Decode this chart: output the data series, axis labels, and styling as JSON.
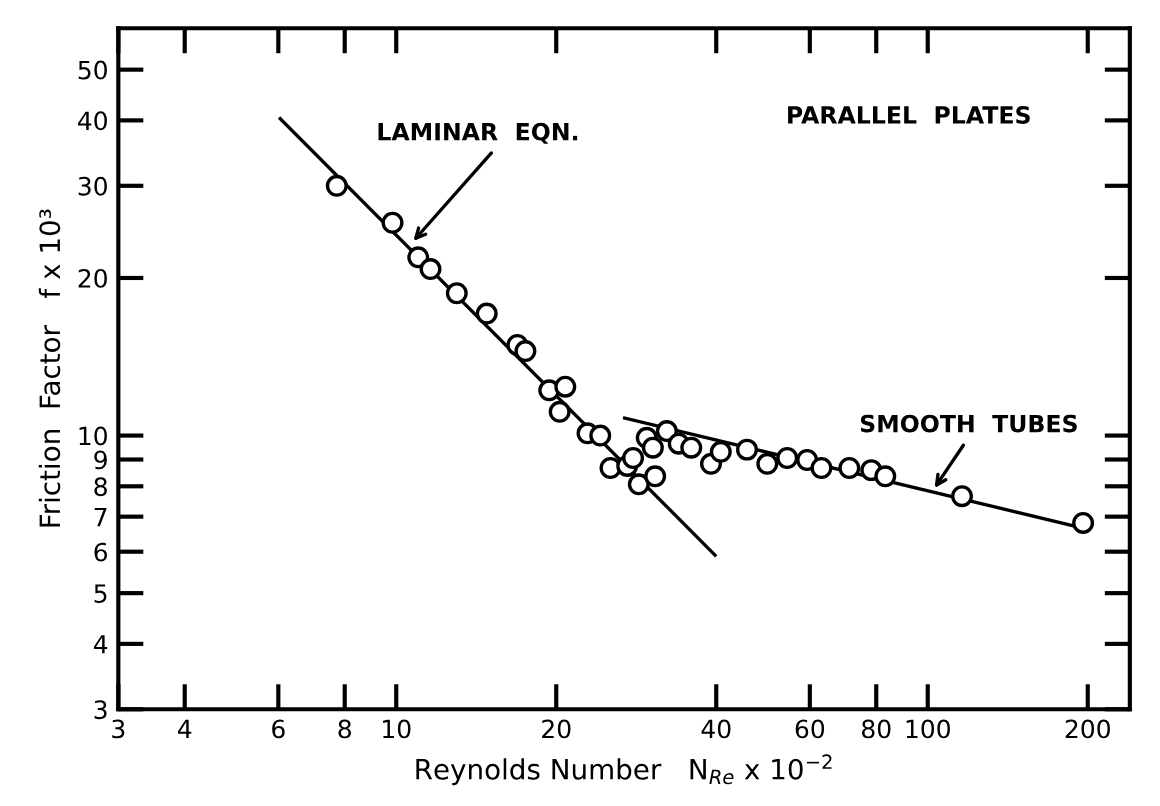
{
  "chart_data": {
    "type": "scatter",
    "xlabel": "Reynolds Number   N$_{Re}$ x 10$^{−2}$",
    "ylabel": "Friction  Factor   f x 10³",
    "log": "xy",
    "xlim": [
      3,
      240
    ],
    "ylim": [
      3,
      60
    ],
    "xticks": [
      3,
      4,
      6,
      8,
      10,
      20,
      40,
      60,
      80,
      100,
      200
    ],
    "yticks": [
      3,
      4,
      5,
      6,
      7,
      8,
      9,
      10,
      20,
      30,
      40,
      50
    ],
    "grid": false,
    "series": [
      {
        "marker": "circle",
        "color": "#000000",
        "x": [
          7.73,
          9.84,
          11.0,
          11.6,
          13.0,
          14.8,
          16.9,
          17.5,
          19.4,
          20.8,
          20.3,
          22.9,
          24.2,
          25.3,
          27.2,
          28.6,
          30.7,
          29.6,
          30.4,
          27.9,
          32.3,
          34.0,
          35.9,
          39.1,
          40.8,
          45.7,
          49.9,
          54.4,
          59.3,
          63.1,
          71.2,
          78.3,
          83.2,
          116,
          196
        ],
        "values": [
          30.0,
          25.5,
          21.9,
          20.8,
          18.7,
          17.1,
          14.9,
          14.5,
          12.2,
          12.4,
          11.1,
          10.1,
          10.0,
          8.67,
          8.75,
          8.07,
          8.36,
          9.9,
          9.48,
          9.06,
          10.2,
          9.65,
          9.48,
          8.83,
          9.31,
          9.4,
          8.83,
          9.06,
          8.98,
          8.67,
          8.67,
          8.59,
          8.36,
          7.66,
          6.81
        ]
      },
      {
        "type": "line",
        "marker": "none",
        "line_style": "solid",
        "color": "#000000",
        "x": [
          6.05,
          39.8
        ],
        "values": [
          40.3,
          5.91
        ]
      },
      {
        "type": "line",
        "marker": "none",
        "line_style": "solid",
        "color": "#000000",
        "x": [
          26.9,
          198
        ],
        "values": [
          10.8,
          6.64
        ]
      }
    ],
    "annotations": [
      {
        "text": "LAMINAR  EQN.",
        "x": 10.6,
        "y": 23.1
      },
      {
        "text": "SMOOTH  TUBES",
        "x": 101.6,
        "y": 7.78
      },
      "PARALLEL  PLATES"
    ]
  }
}
